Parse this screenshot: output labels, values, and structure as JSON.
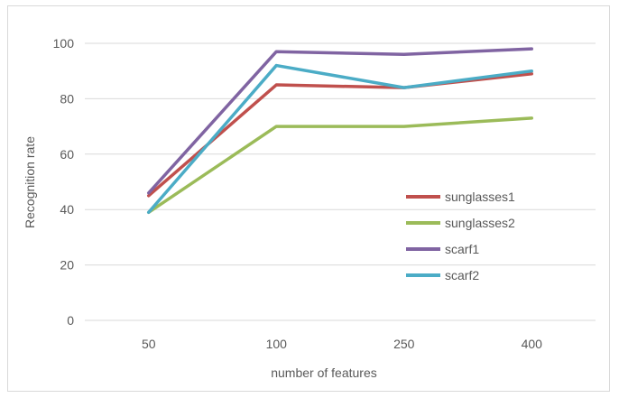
{
  "chart_data": {
    "type": "line",
    "xlabel": "number of features",
    "ylabel": "Recognition rate",
    "categories": [
      "50",
      "100",
      "250",
      "400"
    ],
    "ylim": [
      0,
      100
    ],
    "yticks": [
      0,
      20,
      40,
      60,
      80,
      100
    ],
    "grid": "horizontal",
    "legend_position": "right",
    "series": [
      {
        "name": "sunglasses1",
        "color": "#c0504d",
        "values": [
          45,
          85,
          84,
          89
        ]
      },
      {
        "name": "sunglasses2",
        "color": "#9bbb59",
        "values": [
          39,
          70,
          70,
          73
        ]
      },
      {
        "name": "scarf1",
        "color": "#8064a2",
        "values": [
          46,
          97,
          96,
          98
        ]
      },
      {
        "name": "scarf2",
        "color": "#4bacc6",
        "values": [
          39,
          92,
          84,
          90
        ]
      }
    ]
  }
}
